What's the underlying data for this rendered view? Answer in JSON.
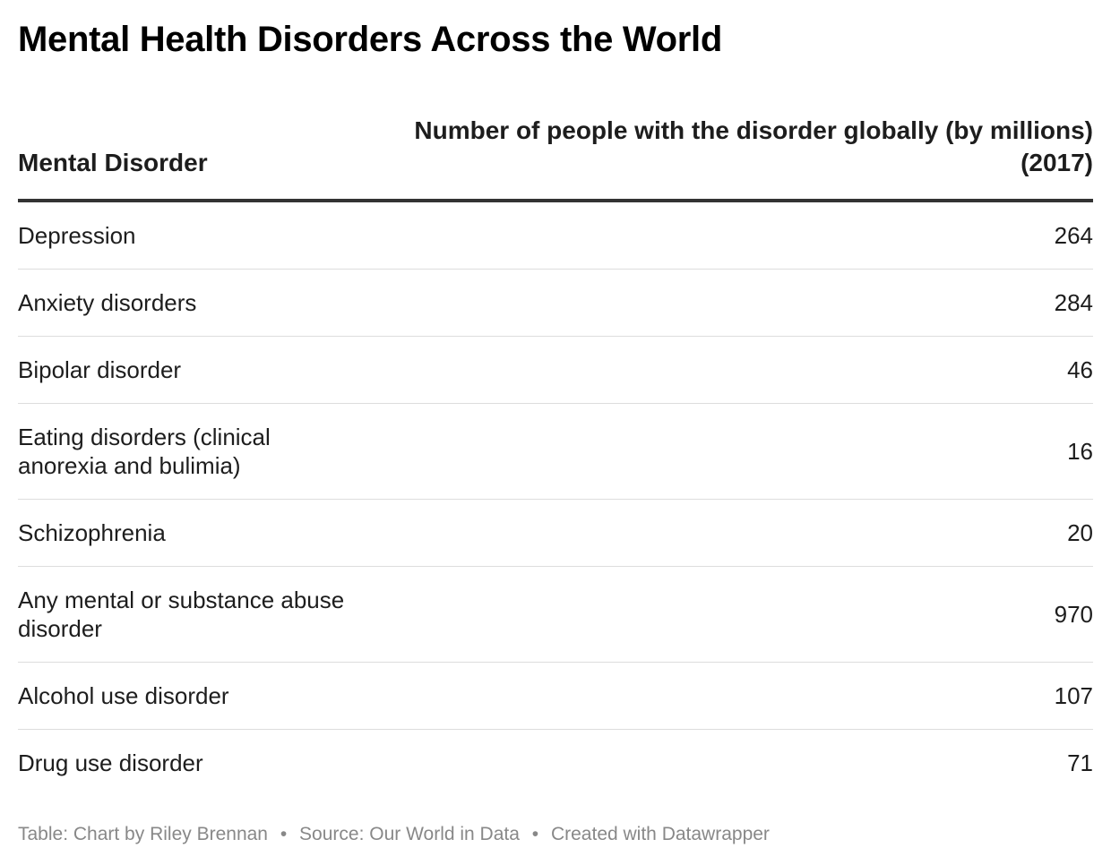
{
  "title": "Mental Health Disorders Across the World",
  "chart_data": {
    "type": "table",
    "columns": [
      "Mental Disorder",
      "Number of people with the disorder globally (by millions) (2017)"
    ],
    "rows": [
      {
        "name": "Depression",
        "value": 264
      },
      {
        "name": "Anxiety disorders",
        "value": 284
      },
      {
        "name": "Bipolar disorder",
        "value": 46
      },
      {
        "name": "Eating disorders (clinical anorexia and bulimia)",
        "value": 16
      },
      {
        "name": "Schizophrenia",
        "value": 20
      },
      {
        "name": "Any mental or substance abuse disorder",
        "value": 970
      },
      {
        "name": "Alcohol use disorder",
        "value": 107
      },
      {
        "name": "Drug use disorder",
        "value": 71
      }
    ]
  },
  "footer": {
    "byline": "Table: Chart by Riley Brennan",
    "source": "Source: Our World in Data",
    "credit": "Created with Datawrapper",
    "separator": "•"
  }
}
